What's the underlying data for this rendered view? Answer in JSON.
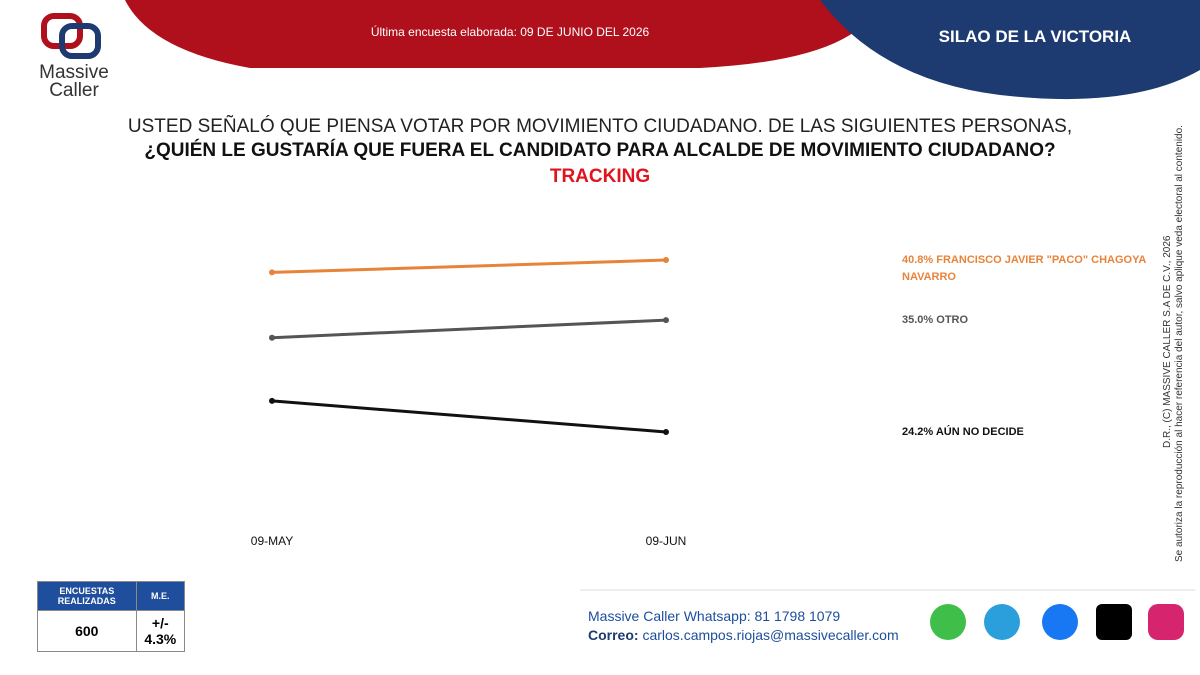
{
  "header": {
    "brand": "Massive",
    "brand_sub": "Caller",
    "survey_date": "Última encuesta elaborada: 09 DE JUNIO DEL 2026",
    "place": "SILAO DE LA VICTORIA"
  },
  "chart_data": {
    "type": "line",
    "title": "USTED SEÑALÓ QUE PIENSA VOTAR POR MOVIMIENTO CIUDADANO. DE LAS SIGUIENTES PERSONAS,",
    "subtitle": "¿QUIÉN LE GUSTARÍA QUE FUERA EL CANDIDATO PARA ALCALDE DE MOVIMIENTO CIUDADANO?",
    "annotation": "TRACKING",
    "categories": [
      "09-MAY",
      "09-JUN"
    ],
    "series": [
      {
        "name": "FRANCISCO JAVIER \"PACO\" CHAGOYA NAVARRO",
        "color": "#e8833a",
        "values": [
          39.6,
          40.8
        ],
        "value_labels": [
          null,
          "40.8%"
        ]
      },
      {
        "name": "OTRO",
        "color": "#555555",
        "values": [
          33.3,
          35.0
        ],
        "value_labels": [
          null,
          "35.0%"
        ]
      },
      {
        "name": "AÚN NO DECIDE",
        "color": "#111111",
        "values": [
          27.2,
          24.2
        ],
        "value_labels": [
          null,
          "24.2%"
        ]
      }
    ]
  },
  "table": {
    "headers": [
      "ENCUESTAS REALIZADAS",
      "M.E."
    ],
    "rows": [
      [
        "600",
        "+/- 4.3%"
      ]
    ]
  },
  "footer": {
    "whatsapp": "Massive Caller Whatsapp: 81 1798 1079",
    "email_label": "Correo:",
    "email": "carlos.campos.riojas@massivecaller.com"
  },
  "copyright": {
    "line1": "D.R., (C) MASSIVE CALLER S.A DE C.V., 2026",
    "line2": "Se autoriza la reproducción al hacer referencia del autor, salvo aplique veda electoral al contenido."
  }
}
